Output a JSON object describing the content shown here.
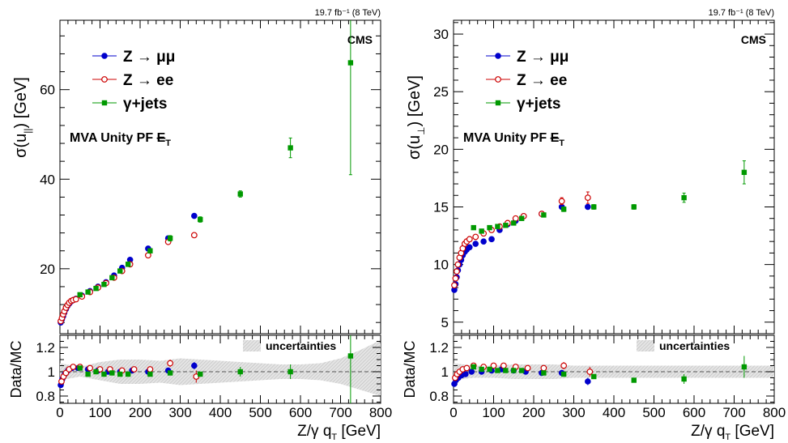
{
  "chart_data": [
    {
      "type": "scatter",
      "lumi": "19.7 fb⁻¹ (8 TeV)",
      "experiment": "CMS",
      "annotation": "MVA Unity PF ȸT",
      "annotation_main": "MVA Unity PF ",
      "annotation_met": "E",
      "annotation_sub": "T",
      "ylabel": "σ(u∥) [GeV]",
      "ylabel_main": "σ(u",
      "ylabel_sub": "||",
      "ylabel_tail": ") [GeV]",
      "xlabel": "Z/γ qᵀ [GeV]",
      "xlabel_main": "Z/γ q",
      "xlabel_sub": "T",
      "xlabel_tail": " [GeV]",
      "xlim": [
        0,
        800
      ],
      "ylim": [
        5.5,
        75.5
      ],
      "yticks": [
        20,
        40,
        60
      ],
      "xticks": [
        0,
        100,
        200,
        300,
        400,
        500,
        600,
        700,
        800
      ],
      "legend_position": "top-left",
      "series": [
        {
          "name": "Z → μμ",
          "color": "#0000cc",
          "marker": "circle",
          "x": [
            2,
            5,
            8,
            11,
            15,
            19,
            23,
            28,
            33,
            40,
            55,
            75,
            95,
            115,
            135,
            155,
            175,
            220,
            270,
            335
          ],
          "y": [
            8.0,
            8.7,
            9.4,
            10.2,
            11.0,
            11.7,
            12.2,
            12.7,
            13.0,
            13.3,
            14.0,
            15.0,
            16.0,
            17.0,
            18.5,
            20.2,
            22.0,
            24.5,
            26.8,
            31.8
          ]
        },
        {
          "name": "Z → ee",
          "color": "#cc0000",
          "marker": "open-circle",
          "x": [
            2,
            5,
            8,
            11,
            15,
            19,
            23,
            28,
            33,
            40,
            55,
            75,
            95,
            115,
            135,
            155,
            175,
            220,
            270,
            335
          ],
          "y": [
            8.3,
            9.0,
            9.8,
            10.5,
            11.3,
            11.9,
            12.4,
            12.8,
            13.0,
            13.2,
            13.8,
            14.8,
            15.8,
            16.8,
            18.0,
            19.5,
            21.0,
            23.0,
            26.0,
            27.5
          ]
        },
        {
          "name": "γ+jets",
          "color": "#009900",
          "marker": "square",
          "x": [
            50,
            70,
            90,
            110,
            130,
            150,
            170,
            225,
            275,
            350,
            450,
            575,
            725
          ],
          "y": [
            14.2,
            14.8,
            15.6,
            16.5,
            18.0,
            19.5,
            21.0,
            24.0,
            26.8,
            31.0,
            36.7,
            47.0,
            66.0
          ],
          "err": [
            0.4,
            0.4,
            0.4,
            0.4,
            0.4,
            0.4,
            0.5,
            0.5,
            0.6,
            0.6,
            0.7,
            2.2,
            25.0
          ]
        }
      ],
      "ratio": {
        "ylabel": "Data/MC",
        "ylim": [
          0.74,
          1.3
        ],
        "yticks": [
          0.8,
          1,
          1.2
        ],
        "legend": "uncertainties",
        "band_x": [
          0,
          50,
          100,
          150,
          200,
          250,
          300,
          350,
          400,
          450,
          500,
          550,
          600,
          650,
          700,
          750,
          800
        ],
        "band_lo": [
          0.93,
          0.96,
          0.93,
          0.9,
          0.9,
          0.91,
          0.89,
          0.9,
          0.91,
          0.92,
          0.93,
          0.94,
          0.94,
          0.93,
          0.9,
          0.85,
          0.8
        ],
        "band_hi": [
          1.07,
          1.04,
          1.08,
          1.1,
          1.1,
          1.09,
          1.11,
          1.1,
          1.09,
          1.08,
          1.07,
          1.06,
          1.06,
          1.07,
          1.11,
          1.18,
          1.26
        ],
        "series": [
          {
            "name": "Z → μμ",
            "color": "#0000cc",
            "marker": "circle",
            "x": [
              2,
              6,
              12,
              20,
              30,
              45,
              70,
              95,
              120,
              150,
              180,
              220,
              270,
              335
            ],
            "y": [
              0.89,
              0.94,
              0.98,
              1.01,
              1.03,
              1.03,
              1.02,
              1.01,
              1.0,
              1.0,
              1.01,
              1.0,
              1.01,
              1.05
            ],
            "err": [
              0.02,
              0.02,
              0.01,
              0.01,
              0.01,
              0.01,
              0.01,
              0.01,
              0.01,
              0.01,
              0.01,
              0.02,
              0.02,
              0.03
            ]
          },
          {
            "name": "Z → ee",
            "color": "#cc0000",
            "marker": "open-circle",
            "x": [
              4,
              9,
              15,
              23,
              33,
              50,
              75,
              100,
              125,
              155,
              185,
              225,
              275,
              340
            ],
            "y": [
              0.92,
              0.96,
              0.99,
              1.02,
              1.04,
              1.04,
              1.03,
              1.02,
              1.02,
              1.01,
              1.02,
              1.02,
              1.07,
              0.96
            ],
            "err": [
              0.02,
              0.02,
              0.01,
              0.01,
              0.01,
              0.01,
              0.01,
              0.01,
              0.01,
              0.01,
              0.01,
              0.02,
              0.03,
              0.05
            ]
          },
          {
            "name": "γ+jets",
            "color": "#009900",
            "marker": "square",
            "x": [
              50,
              70,
              90,
              110,
              130,
              150,
              170,
              225,
              275,
              350,
              450,
              575,
              725
            ],
            "y": [
              1.03,
              0.98,
              1.0,
              0.98,
              0.99,
              0.98,
              0.98,
              0.98,
              0.99,
              0.98,
              1.0,
              1.0,
              1.13
            ],
            "err": [
              0.01,
              0.01,
              0.01,
              0.01,
              0.01,
              0.01,
              0.01,
              0.01,
              0.02,
              0.02,
              0.04,
              0.06,
              0.5
            ]
          }
        ]
      }
    },
    {
      "type": "scatter",
      "lumi": "19.7 fb⁻¹ (8 TeV)",
      "experiment": "CMS",
      "annotation": "MVA Unity PF ȸT",
      "annotation_main": "MVA Unity PF ",
      "annotation_met": "E",
      "annotation_sub": "T",
      "ylabel": "σ(u⊥) [GeV]",
      "ylabel_main": "σ(u",
      "ylabel_sub": "⊥",
      "ylabel_tail": ") [GeV]",
      "xlabel": "Z/γ qᵀ [GeV]",
      "xlabel_main": "Z/γ q",
      "xlabel_sub": "T",
      "xlabel_tail": " [GeV]",
      "xlim": [
        0,
        800
      ],
      "ylim": [
        4,
        31.2
      ],
      "yticks": [
        5,
        10,
        15,
        20,
        25,
        30
      ],
      "xticks": [
        0,
        100,
        200,
        300,
        400,
        500,
        600,
        700,
        800
      ],
      "legend_position": "top-left",
      "series": [
        {
          "name": "Z → μμ",
          "color": "#0000cc",
          "marker": "circle",
          "x": [
            2,
            5,
            8,
            11,
            15,
            19,
            23,
            28,
            33,
            40,
            55,
            75,
            95,
            115,
            135,
            155,
            175,
            220,
            270,
            335
          ],
          "y": [
            7.8,
            8.3,
            8.9,
            9.5,
            10.0,
            10.4,
            10.8,
            11.1,
            11.3,
            11.5,
            11.8,
            12.0,
            12.2,
            13.0,
            13.5,
            13.8,
            14.2,
            14.4,
            15.0,
            15.0
          ]
        },
        {
          "name": "Z → ee",
          "color": "#cc0000",
          "marker": "open-circle",
          "x": [
            2,
            5,
            8,
            11,
            15,
            19,
            23,
            28,
            33,
            40,
            55,
            75,
            95,
            115,
            135,
            155,
            175,
            220,
            270,
            335
          ],
          "y": [
            8.2,
            8.8,
            9.4,
            10.0,
            10.6,
            11.0,
            11.4,
            11.8,
            12.0,
            12.2,
            12.4,
            12.7,
            13.0,
            13.3,
            13.6,
            14.0,
            14.2,
            14.4,
            15.5,
            15.8
          ],
          "err": [
            0.1,
            0.1,
            0.1,
            0.1,
            0.1,
            0.1,
            0.1,
            0.1,
            0.1,
            0.1,
            0.1,
            0.1,
            0.1,
            0.1,
            0.1,
            0.1,
            0.1,
            0.15,
            0.3,
            0.5
          ]
        },
        {
          "name": "γ+jets",
          "color": "#009900",
          "marker": "square",
          "x": [
            50,
            70,
            90,
            110,
            130,
            150,
            170,
            225,
            275,
            350,
            450,
            575,
            725
          ],
          "y": [
            13.2,
            12.9,
            13.2,
            13.3,
            13.4,
            13.6,
            14.0,
            14.3,
            14.8,
            15.0,
            15.0,
            15.8,
            18.0
          ],
          "err": [
            0.1,
            0.1,
            0.1,
            0.1,
            0.1,
            0.1,
            0.1,
            0.15,
            0.2,
            0.2,
            0.2,
            0.4,
            1.0
          ]
        }
      ],
      "ratio": {
        "ylabel": "Data/MC",
        "ylim": [
          0.74,
          1.3
        ],
        "yticks": [
          0.8,
          1,
          1.2
        ],
        "legend": "uncertainties",
        "band_x": [
          0,
          50,
          100,
          150,
          200,
          250,
          300,
          350,
          400,
          450,
          500,
          550,
          600,
          650,
          700,
          750,
          800
        ],
        "band_lo": [
          0.93,
          0.95,
          0.95,
          0.94,
          0.94,
          0.94,
          0.95,
          0.95,
          0.95,
          0.95,
          0.95,
          0.95,
          0.95,
          0.95,
          0.95,
          0.95,
          0.95
        ],
        "band_hi": [
          1.07,
          1.05,
          1.05,
          1.06,
          1.06,
          1.06,
          1.05,
          1.05,
          1.05,
          1.05,
          1.05,
          1.05,
          1.05,
          1.05,
          1.05,
          1.05,
          1.05
        ],
        "series": [
          {
            "name": "Z → μμ",
            "color": "#0000cc",
            "marker": "circle",
            "x": [
              2,
              6,
              12,
              20,
              30,
              45,
              70,
              95,
              120,
              150,
              180,
              220,
              270,
              335
            ],
            "y": [
              0.9,
              0.93,
              0.95,
              0.97,
              0.98,
              1.0,
              1.0,
              1.01,
              1.02,
              1.01,
              1.0,
              0.99,
              0.99,
              0.92
            ],
            "err": [
              0.02,
              0.02,
              0.01,
              0.01,
              0.01,
              0.01,
              0.01,
              0.01,
              0.01,
              0.01,
              0.01,
              0.02,
              0.02,
              0.03
            ]
          },
          {
            "name": "Z → ee",
            "color": "#cc0000",
            "marker": "open-circle",
            "x": [
              4,
              9,
              15,
              23,
              33,
              50,
              75,
              100,
              125,
              155,
              185,
              225,
              275,
              340
            ],
            "y": [
              0.95,
              0.98,
              1.0,
              1.02,
              1.03,
              1.05,
              1.04,
              1.05,
              1.05,
              1.04,
              1.03,
              1.03,
              1.05,
              1.0
            ],
            "err": [
              0.02,
              0.02,
              0.01,
              0.01,
              0.01,
              0.01,
              0.01,
              0.01,
              0.01,
              0.01,
              0.01,
              0.02,
              0.03,
              0.04
            ]
          },
          {
            "name": "γ+jets",
            "color": "#009900",
            "marker": "square",
            "x": [
              50,
              70,
              90,
              110,
              130,
              150,
              170,
              225,
              275,
              350,
              450,
              575,
              725
            ],
            "y": [
              1.04,
              1.02,
              1.02,
              1.01,
              1.01,
              1.01,
              1.01,
              0.99,
              0.98,
              0.96,
              0.93,
              0.94,
              1.04
            ],
            "err": [
              0.01,
              0.01,
              0.01,
              0.01,
              0.01,
              0.01,
              0.01,
              0.01,
              0.02,
              0.02,
              0.02,
              0.04,
              0.09
            ]
          }
        ]
      }
    }
  ]
}
